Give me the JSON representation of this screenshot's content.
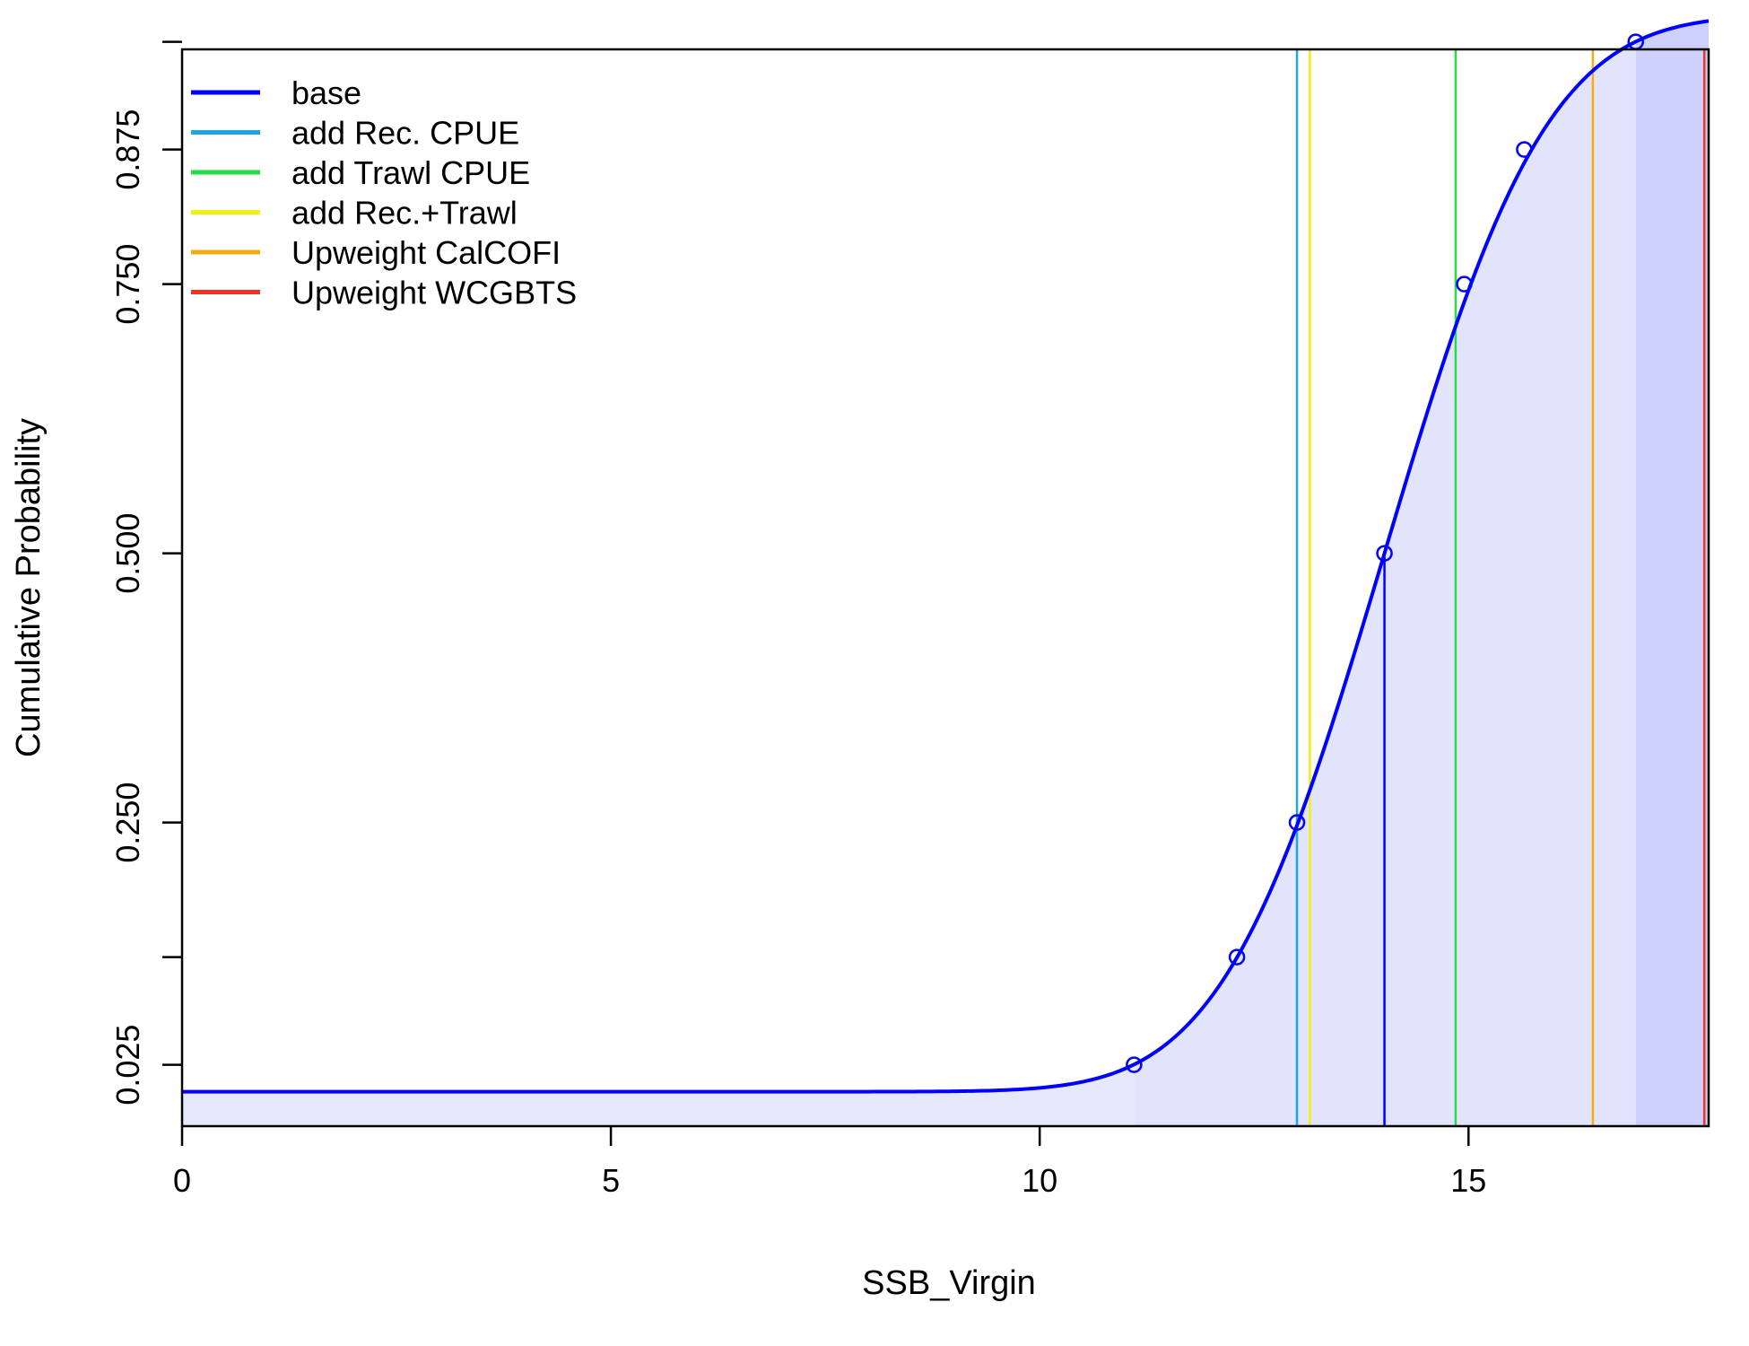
{
  "chart_data": {
    "type": "line",
    "title": "",
    "xlabel": "SSB_Virgin",
    "ylabel": "Cumulative Probability",
    "xlim": [
      0,
      17.8
    ],
    "ylim": [
      -0.032,
      0.968
    ],
    "x_ticks": [
      {
        "value": 0,
        "label": "0"
      },
      {
        "value": 5,
        "label": "5"
      },
      {
        "value": 10,
        "label": "10"
      },
      {
        "value": 15,
        "label": "15"
      }
    ],
    "y_ticks": [
      {
        "value": 0.025,
        "label": "0.025"
      },
      {
        "value": 0.125,
        "label": ""
      },
      {
        "value": 0.25,
        "label": "0.250"
      },
      {
        "value": 0.5,
        "label": "0.500"
      },
      {
        "value": 0.75,
        "label": "0.750"
      },
      {
        "value": 0.875,
        "label": "0.875"
      },
      {
        "value": 0.975,
        "label": ""
      }
    ],
    "grid": false,
    "legend_position": "top-left",
    "cdf": {
      "name": "base",
      "color": "#0000ff",
      "mean": 14.02,
      "sd": 1.493,
      "x_start": 0,
      "x_end": 17.8
    },
    "quantile_points": [
      {
        "x": 11.1,
        "y": 0.025
      },
      {
        "x": 12.3,
        "y": 0.125
      },
      {
        "x": 13.0,
        "y": 0.25
      },
      {
        "x": 14.02,
        "y": 0.5
      },
      {
        "x": 14.95,
        "y": 0.75
      },
      {
        "x": 15.65,
        "y": 0.875
      },
      {
        "x": 16.95,
        "y": 0.975
      }
    ],
    "median_drop": {
      "x": 14.02,
      "y": 0.5
    },
    "shaded_bands": [
      {
        "from": 0,
        "to": 11.1,
        "color": "#e6e8fb"
      },
      {
        "from": 11.1,
        "to": 16.95,
        "color": "#e1e4fb"
      },
      {
        "from": 16.95,
        "to": 17.8,
        "color": "#cdd0fa"
      }
    ],
    "vertical_lines": [
      {
        "name": "add Rec. CPUE",
        "x": 13.0,
        "color": "#1ea5e8"
      },
      {
        "name": "add Trawl CPUE",
        "x": 14.85,
        "color": "#22dd44"
      },
      {
        "name": "add Rec.+Trawl",
        "x": 13.15,
        "color": "#f2ee10"
      },
      {
        "name": "Upweight CalCOFI",
        "x": 16.45,
        "color": "#f5ac10"
      },
      {
        "name": "Upweight WCGBTS",
        "x": 17.75,
        "color": "#ee3322"
      }
    ],
    "legend": [
      {
        "label": "base",
        "color": "#0000ff"
      },
      {
        "label": "add Rec. CPUE",
        "color": "#1ea5e8"
      },
      {
        "label": "add Trawl CPUE",
        "color": "#22dd44"
      },
      {
        "label": "add Rec.+Trawl",
        "color": "#f2ee10"
      },
      {
        "label": "Upweight CalCOFI",
        "color": "#f5ac10"
      },
      {
        "label": "Upweight WCGBTS",
        "color": "#ee3322"
      }
    ]
  }
}
